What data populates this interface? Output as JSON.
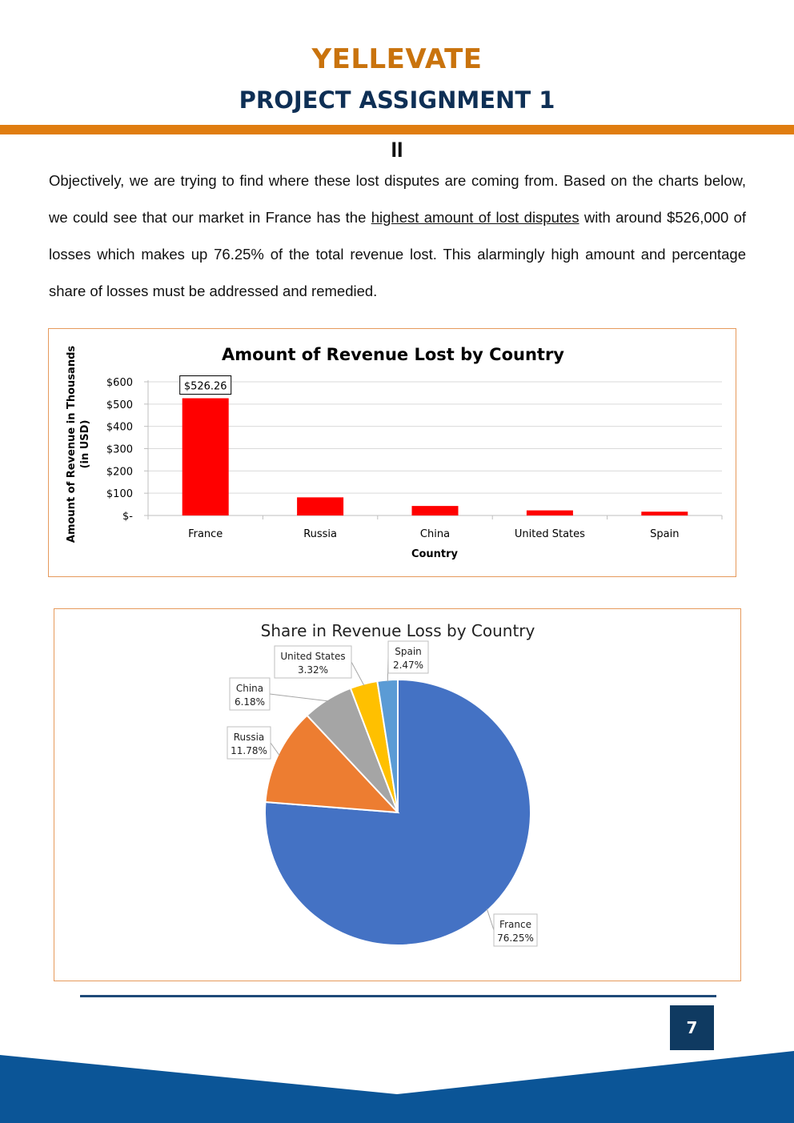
{
  "header": {
    "brand": "YELLEVATE",
    "subtitle": "PROJECT ASSIGNMENT 1",
    "section": "II"
  },
  "paragraph": {
    "part1": "Objectively, we are trying to find where these lost disputes are coming from. Based on the charts below, we could see that our market in France has the ",
    "underlined": "highest amount of lost disputes",
    "part2": " with around $526,000 of losses which makes up 76.25% of the total revenue lost. This alarmingly high amount and percentage share of losses must be addressed and remedied."
  },
  "chart_data": [
    {
      "type": "bar",
      "title": "Amount of Revenue Lost by Country",
      "xlabel": "Country",
      "ylabel_line1": "Amount of Revenue  in Thousands",
      "ylabel_line2": "(in USD)",
      "categories": [
        "France",
        "Russia",
        "China",
        "United States",
        "Spain"
      ],
      "values": [
        526.26,
        81.3,
        42.7,
        22.9,
        17.0
      ],
      "ylim": [
        0,
        600
      ],
      "yticks": [
        0,
        100,
        200,
        300,
        400,
        500,
        600
      ],
      "ytick_labels": [
        "$-",
        "$100",
        "$200",
        "$300",
        "$400",
        "$500",
        "$600"
      ],
      "data_labels": [
        "$526.26",
        "",
        "",
        "",
        ""
      ],
      "bar_color": "#ff0000",
      "grid": true,
      "legend": "none"
    },
    {
      "type": "pie",
      "title": "Share in Revenue Loss by Country",
      "slices": [
        {
          "label": "France",
          "value": 76.25,
          "display": "76.25%",
          "color": "#4472c4"
        },
        {
          "label": "Russia",
          "value": 11.78,
          "display": "11.78%",
          "color": "#ed7d31"
        },
        {
          "label": "China",
          "value": 6.18,
          "display": "6.18%",
          "color": "#a5a5a5"
        },
        {
          "label": "United States",
          "value": 3.32,
          "display": "3.32%",
          "color": "#ffc000"
        },
        {
          "label": "Spain",
          "value": 2.47,
          "display": "2.47%",
          "color": "#5b9bd5"
        }
      ],
      "legend": "none"
    }
  ],
  "footer": {
    "page_number": "7",
    "band_color": "#0b5597",
    "rule_color": "#1e4a78"
  }
}
